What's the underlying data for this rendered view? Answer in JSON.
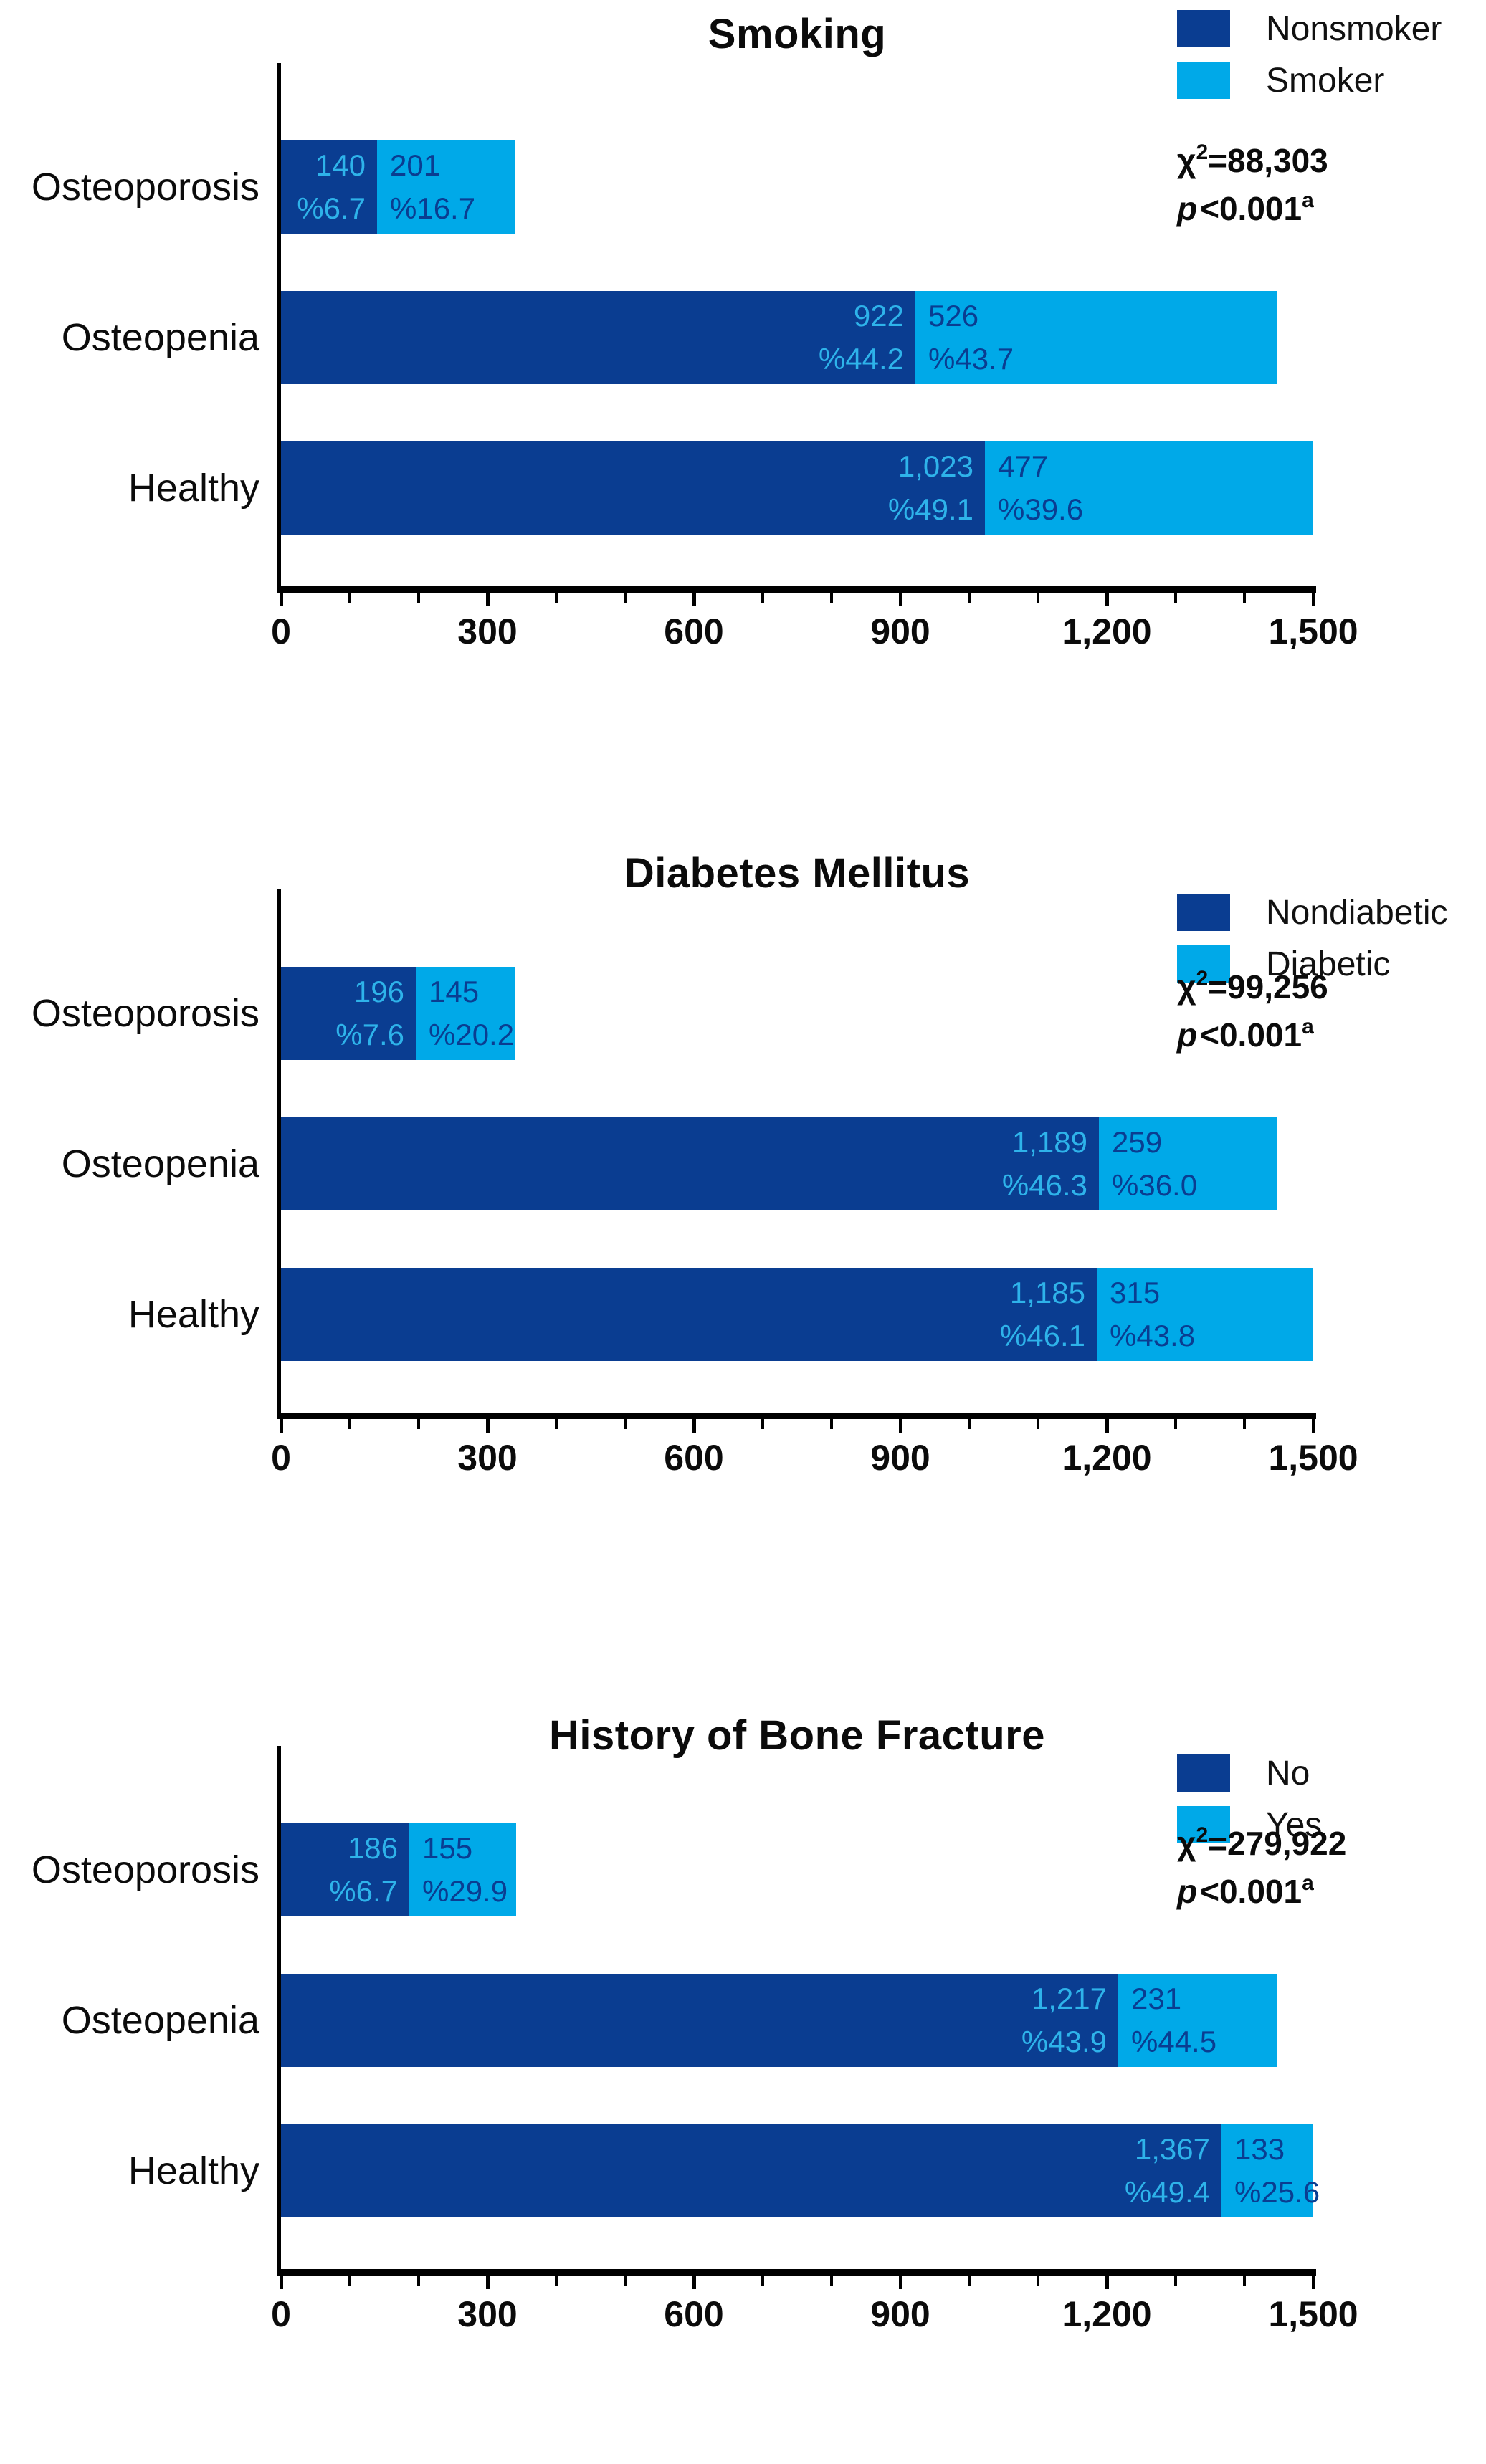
{
  "colors": {
    "dark_series": "#0A3D91",
    "light_series": "#00A9E8",
    "label_on_dark": "#2EB3EA",
    "label_on_light": "#0A3D91",
    "axis": "#000000",
    "text": "#0B0B0B"
  },
  "chart_data": [
    {
      "type": "bar",
      "variant": "horizontal-stacked",
      "title": "Smoking",
      "categories": [
        "Osteoporosis",
        "Osteopenia",
        "Healthy"
      ],
      "series": [
        {
          "name": "Nonsmoker",
          "color": "#0A3D91",
          "values": [
            140,
            922,
            1023
          ],
          "count_labels": [
            "140",
            "922",
            "1,023"
          ],
          "pct_labels": [
            "%6.7",
            "%44.2",
            "%49.1"
          ]
        },
        {
          "name": "Smoker",
          "color": "#00A9E8",
          "values": [
            201,
            526,
            477
          ],
          "count_labels": [
            "201",
            "526",
            "477"
          ],
          "pct_labels": [
            "%16.7",
            "%43.7",
            "%39.6"
          ]
        }
      ],
      "stats": {
        "chi_base": "χ",
        "chi_sup": "2",
        "chi_rest": "=88,303",
        "p_base": "p",
        "p_rest": "<0.001",
        "p_sup": "a"
      },
      "xlim": [
        0,
        1500
      ],
      "xtick_values": [
        0,
        300,
        600,
        900,
        1200,
        1500
      ],
      "xtick_labels": [
        "0",
        "300",
        "600",
        "900",
        "1,200",
        "1,500"
      ],
      "minor_tick_step": 100,
      "grid": false,
      "legend_position": "top-right"
    },
    {
      "type": "bar",
      "variant": "horizontal-stacked",
      "title": "Diabetes Mellitus",
      "categories": [
        "Osteoporosis",
        "Osteopenia",
        "Healthy"
      ],
      "series": [
        {
          "name": "Nondiabetic",
          "color": "#0A3D91",
          "values": [
            196,
            1189,
            1185
          ],
          "count_labels": [
            "196",
            "1,189",
            "1,185"
          ],
          "pct_labels": [
            "%7.6",
            "%46.3",
            "%46.1"
          ]
        },
        {
          "name": "Diabetic",
          "color": "#00A9E8",
          "values": [
            145,
            259,
            315
          ],
          "count_labels": [
            "145",
            "259",
            "315"
          ],
          "pct_labels": [
            "%20.2",
            "%36.0",
            "%43.8"
          ]
        }
      ],
      "stats": {
        "chi_base": "χ",
        "chi_sup": "2",
        "chi_rest": "=99,256",
        "p_base": "p",
        "p_rest": "<0.001",
        "p_sup": "a"
      },
      "xlim": [
        0,
        1500
      ],
      "xtick_values": [
        0,
        300,
        600,
        900,
        1200,
        1500
      ],
      "xtick_labels": [
        "0",
        "300",
        "600",
        "900",
        "1,200",
        "1,500"
      ],
      "minor_tick_step": 100,
      "grid": false,
      "legend_position": "top-right"
    },
    {
      "type": "bar",
      "variant": "horizontal-stacked",
      "title": "History of Bone Fracture",
      "categories": [
        "Osteoporosis",
        "Osteopenia",
        "Healthy"
      ],
      "series": [
        {
          "name": "No",
          "color": "#0A3D91",
          "values": [
            186,
            1217,
            1367
          ],
          "count_labels": [
            "186",
            "1,217",
            "1,367"
          ],
          "pct_labels": [
            "%6.7",
            "%43.9",
            "%49.4"
          ]
        },
        {
          "name": "Yes",
          "color": "#00A9E8",
          "values": [
            155,
            231,
            133
          ],
          "count_labels": [
            "155",
            "231",
            "133"
          ],
          "pct_labels": [
            "%29.9",
            "%44.5",
            "%25.6"
          ]
        }
      ],
      "stats": {
        "chi_base": "χ",
        "chi_sup": "2",
        "chi_rest": "=279,922",
        "p_base": "p",
        "p_rest": "<0.001",
        "p_sup": "a"
      },
      "xlim": [
        0,
        1500
      ],
      "xtick_values": [
        0,
        300,
        600,
        900,
        1200,
        1500
      ],
      "xtick_labels": [
        "0",
        "300",
        "600",
        "900",
        "1,200",
        "1,500"
      ],
      "minor_tick_step": 100,
      "grid": false,
      "legend_position": "top-right"
    }
  ]
}
